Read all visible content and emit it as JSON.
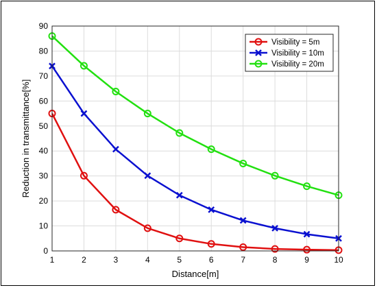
{
  "chart_data": {
    "type": "line",
    "title": "",
    "xlabel": "Distance[m]",
    "ylabel": "Reduction in transmittance[%]",
    "xlim": [
      1,
      10
    ],
    "ylim": [
      0,
      90
    ],
    "xticks": [
      "1",
      "2",
      "3",
      "4",
      "5",
      "6",
      "7",
      "8",
      "9",
      "10"
    ],
    "yticks": [
      "0",
      "10",
      "20",
      "30",
      "40",
      "50",
      "60",
      "70",
      "80",
      "90"
    ],
    "grid": true,
    "legend_position": "top-right",
    "x": [
      1,
      2,
      3,
      4,
      5,
      6,
      7,
      8,
      9,
      10
    ],
    "series": [
      {
        "name": "Visibility = 5m",
        "color": "#e01010",
        "marker": "circle",
        "values": [
          55,
          30.1,
          16.5,
          9.1,
          5.0,
          2.8,
          1.5,
          0.8,
          0.5,
          0.3
        ]
      },
      {
        "name": "Visibility = 10m",
        "color": "#0a10d0",
        "marker": "x",
        "values": [
          74,
          55,
          40.7,
          30.1,
          22.3,
          16.5,
          12.2,
          9.1,
          6.7,
          5.0
        ]
      },
      {
        "name": "Visibility = 20m",
        "color": "#22e010",
        "marker": "circle",
        "values": [
          86,
          74.1,
          63.8,
          55,
          47.2,
          40.7,
          35,
          30.1,
          25.9,
          22.3
        ]
      }
    ]
  }
}
